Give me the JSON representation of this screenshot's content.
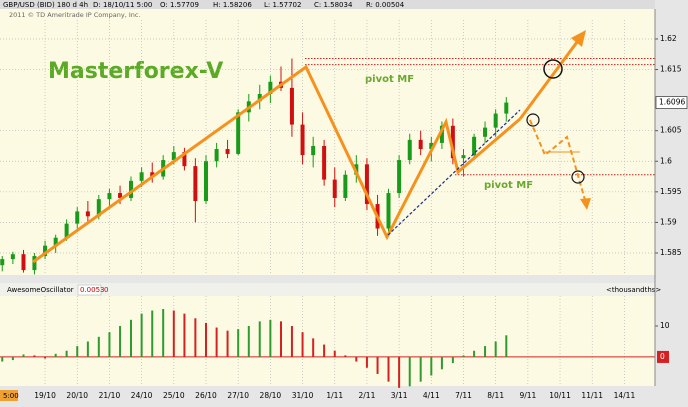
{
  "header": {
    "symbol": "GBP/USD (BID) 180 d 4h",
    "date": "D: 18/10/11 5:00",
    "open": "O: 1.57709",
    "high": "H: 1.58206",
    "low": "L: 1.57702",
    "close": "C: 1.58034",
    "range": "R: 0.00504",
    "copyright": "2011 © TD Ameritrade IP Company, Inc.",
    "time_box": "5:00"
  },
  "chart_data": [
    {
      "type": "candlestick",
      "title": "Masterforex-V",
      "annotations": [
        "pivot MF",
        "pivot MF"
      ],
      "levels": [
        1.6168,
        1.6158,
        1.5978
      ],
      "level_color": "#d42020",
      "up_color": "#1a9a1a",
      "down_color": "#d01010",
      "x": [
        -1.33,
        -1,
        -0.67,
        -0.33,
        0,
        0.33,
        0.67,
        1,
        1.33,
        1.67,
        2,
        2.33,
        2.67,
        3,
        3.33,
        3.67,
        4,
        4.33,
        4.67,
        5,
        5.33,
        5.67,
        6,
        6.33,
        6.67,
        7,
        7.33,
        7.67,
        8,
        8.33,
        8.67,
        9,
        9.33,
        9.67,
        10,
        10.33,
        10.67,
        11,
        11.33,
        11.67,
        12,
        12.33,
        12.67,
        13,
        13.33,
        13.67,
        14,
        14.33
      ],
      "open": [
        1.583,
        1.584,
        1.5848,
        1.5822,
        1.5845,
        1.5862,
        1.5875,
        1.5898,
        1.5918,
        1.591,
        1.5938,
        1.5948,
        1.594,
        1.5968,
        1.5982,
        1.5975,
        1.6002,
        1.6015,
        1.5992,
        1.5935,
        1.6,
        1.602,
        1.6012,
        1.608,
        1.6098,
        1.611,
        1.613,
        1.612,
        1.606,
        1.601,
        1.6025,
        1.597,
        1.594,
        1.5978,
        1.5995,
        1.593,
        1.589,
        1.5948,
        1.6002,
        1.6035,
        1.602,
        1.603,
        1.6058,
        1.6005,
        1.601,
        1.604,
        1.6055,
        1.6078
      ],
      "high": [
        1.5845,
        1.5852,
        1.5855,
        1.585,
        1.587,
        1.588,
        1.5905,
        1.5925,
        1.5935,
        1.5945,
        1.5955,
        1.596,
        1.5975,
        1.599,
        1.5998,
        1.601,
        1.6025,
        1.6022,
        1.6005,
        1.601,
        1.603,
        1.6035,
        1.6085,
        1.611,
        1.6125,
        1.614,
        1.6155,
        1.6168,
        1.608,
        1.604,
        1.6035,
        1.599,
        1.5985,
        1.601,
        1.6005,
        1.5945,
        1.5955,
        1.601,
        1.6045,
        1.605,
        1.604,
        1.6065,
        1.607,
        1.602,
        1.6045,
        1.6065,
        1.6085,
        1.6105
      ],
      "low": [
        1.582,
        1.5832,
        1.5818,
        1.5815,
        1.584,
        1.585,
        1.587,
        1.589,
        1.59,
        1.5905,
        1.5925,
        1.593,
        1.5935,
        1.5958,
        1.5965,
        1.597,
        1.5995,
        1.5985,
        1.59,
        1.593,
        1.599,
        1.6005,
        1.601,
        1.6065,
        1.6085,
        1.6095,
        1.6115,
        1.604,
        1.5995,
        1.599,
        1.596,
        1.5925,
        1.5935,
        1.5965,
        1.592,
        1.5878,
        1.5882,
        1.594,
        1.5995,
        1.601,
        1.6,
        1.602,
        1.5995,
        1.5975,
        1.6005,
        1.603,
        1.604,
        1.6065
      ],
      "close": [
        1.584,
        1.5848,
        1.5822,
        1.5845,
        1.5862,
        1.5875,
        1.5898,
        1.5918,
        1.591,
        1.5938,
        1.5948,
        1.594,
        1.5968,
        1.5982,
        1.5975,
        1.6002,
        1.6015,
        1.5992,
        1.5935,
        1.6,
        1.602,
        1.6012,
        1.608,
        1.6098,
        1.611,
        1.613,
        1.612,
        1.606,
        1.601,
        1.6025,
        1.597,
        1.594,
        1.5978,
        1.5995,
        1.593,
        1.589,
        1.5948,
        1.6002,
        1.6035,
        1.602,
        1.603,
        1.6058,
        1.6005,
        1.601,
        1.604,
        1.6055,
        1.6078,
        1.6096
      ],
      "xlim": [
        -1.4,
        18.95
      ],
      "ylim": [
        1.5814,
        1.6249
      ],
      "yticks": [
        1.585,
        1.59,
        1.595,
        1.6,
        1.605,
        1.615,
        1.62
      ],
      "grid": true
    },
    {
      "type": "bar",
      "title": "AwesomeOscillator",
      "current": "0.0053",
      "zero_label": "0",
      "units": "<thousandths>",
      "up_color": "#2e9b2e",
      "down_color": "#d42020",
      "zero_color": "#d42020",
      "x": [
        -1.33,
        -1,
        -0.67,
        -0.33,
        0,
        0.33,
        0.67,
        1,
        1.33,
        1.67,
        2,
        2.33,
        2.67,
        3,
        3.33,
        3.67,
        4,
        4.33,
        4.67,
        5,
        5.33,
        5.67,
        6,
        6.33,
        6.67,
        7,
        7.33,
        7.67,
        8,
        8.33,
        8.67,
        9,
        9.33,
        9.67,
        10,
        10.33,
        10.67,
        11,
        11.33,
        11.67,
        12,
        12.33,
        12.67,
        13,
        13.33,
        13.67,
        14,
        14.33
      ],
      "values": [
        -1.5,
        -1,
        0.8,
        0.5,
        -0.5,
        1,
        2,
        3.5,
        5,
        6.5,
        8,
        10,
        12,
        14,
        15,
        15.5,
        15,
        14,
        12.5,
        11,
        9.5,
        8.5,
        9,
        10,
        11.5,
        12,
        11.5,
        10,
        8,
        6,
        4,
        2,
        0.5,
        -1.5,
        -3.5,
        -5.5,
        -8,
        -10,
        -9.5,
        -8,
        -6,
        -4,
        -2,
        0.5,
        2,
        3.5,
        5,
        7
      ],
      "xlim": [
        -1.4,
        18.95
      ],
      "ylim": [
        -9.4,
        19.7
      ],
      "yticks": [
        0,
        10
      ],
      "xticks": [
        {
          "value": 0,
          "label": "19/10"
        },
        {
          "value": 1,
          "label": "20/10"
        },
        {
          "value": 2,
          "label": "21/10"
        },
        {
          "value": 3,
          "label": "24/10"
        },
        {
          "value": 4,
          "label": "25/10"
        },
        {
          "value": 5,
          "label": "26/10"
        },
        {
          "value": 6,
          "label": "27/10"
        },
        {
          "value": 7,
          "label": "28/10"
        },
        {
          "value": 8,
          "label": "31/10"
        },
        {
          "value": 9,
          "label": "1/11"
        },
        {
          "value": 10,
          "label": "2/11"
        },
        {
          "value": 11,
          "label": "3/11"
        },
        {
          "value": 12,
          "label": "4/11"
        },
        {
          "value": 13,
          "label": "7/11"
        },
        {
          "value": 14,
          "label": "8/11"
        },
        {
          "value": 15,
          "label": "9/11"
        },
        {
          "value": 16,
          "label": "10/11"
        },
        {
          "value": 17,
          "label": "11/11"
        },
        {
          "value": 18,
          "label": "14/11"
        }
      ],
      "grid": true
    }
  ]
}
